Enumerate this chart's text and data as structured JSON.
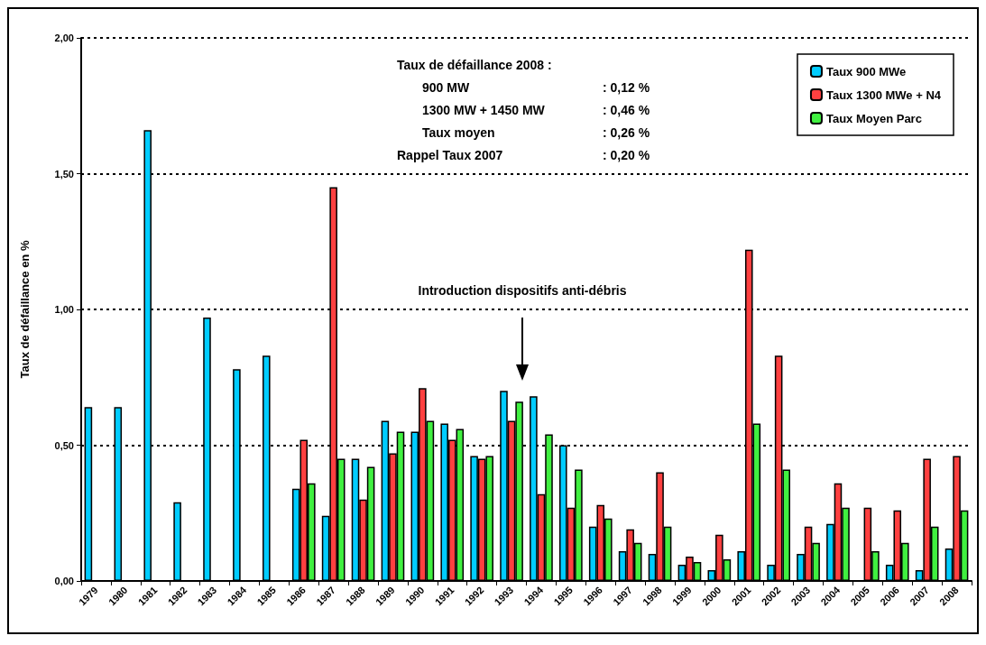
{
  "chart_data": {
    "type": "bar",
    "ylabel": "Taux de défaillance en %",
    "categories": [
      "1979",
      "1980",
      "1981",
      "1982",
      "1983",
      "1984",
      "1985",
      "1986",
      "1987",
      "1988",
      "1989",
      "1990",
      "1991",
      "1992",
      "1993",
      "1994",
      "1995",
      "1996",
      "1997",
      "1998",
      "1999",
      "2000",
      "2001",
      "2002",
      "2003",
      "2004",
      "2005",
      "2006",
      "2007",
      "2008"
    ],
    "series": [
      {
        "name": "Taux 900 MWe",
        "color": "#00ccff",
        "values": [
          0.64,
          0.64,
          1.66,
          0.29,
          0.97,
          0.78,
          0.83,
          0.34,
          0.24,
          0.45,
          0.59,
          0.55,
          0.58,
          0.46,
          0.7,
          0.68,
          0.5,
          0.2,
          0.11,
          0.1,
          0.06,
          0.04,
          0.11,
          0.06,
          0.1,
          0.21,
          null,
          0.06,
          0.04,
          0.12
        ]
      },
      {
        "name": "Taux 1300 MWe + N4",
        "color": "#ff4040",
        "values": [
          null,
          null,
          null,
          null,
          null,
          null,
          null,
          0.52,
          1.45,
          0.3,
          0.47,
          0.71,
          0.52,
          0.45,
          0.59,
          0.32,
          0.27,
          0.28,
          0.19,
          0.4,
          0.09,
          0.17,
          1.22,
          0.83,
          0.2,
          0.36,
          0.27,
          0.26,
          0.45,
          0.46
        ]
      },
      {
        "name": "Taux Moyen Parc",
        "color": "#40f040",
        "values": [
          null,
          null,
          null,
          null,
          null,
          null,
          null,
          0.36,
          0.45,
          0.42,
          0.55,
          0.59,
          0.56,
          0.46,
          0.66,
          0.54,
          0.41,
          0.23,
          0.14,
          0.2,
          0.07,
          0.08,
          0.58,
          0.41,
          0.14,
          0.27,
          0.11,
          0.14,
          0.2,
          0.26
        ]
      }
    ],
    "ylim": [
      0,
      2
    ],
    "yticks": [
      {
        "value": 0,
        "label": "0,00"
      },
      {
        "value": 0.5,
        "label": "0,50"
      },
      {
        "value": 1,
        "label": "1,00"
      },
      {
        "value": 1.5,
        "label": "1,50"
      },
      {
        "value": 2,
        "label": "2,00"
      }
    ],
    "grid": "y",
    "legend": "top right",
    "annotations": [
      "Taux de défaillance 2008 :",
      "900 MW : 0,12 %",
      "1300 MW + 1450 MW : 0,46 %",
      "Taux moyen : 0,26 %",
      "Rappel Taux 2007 : 0,20 %",
      "Introduction dispositifs anti-débris"
    ]
  }
}
